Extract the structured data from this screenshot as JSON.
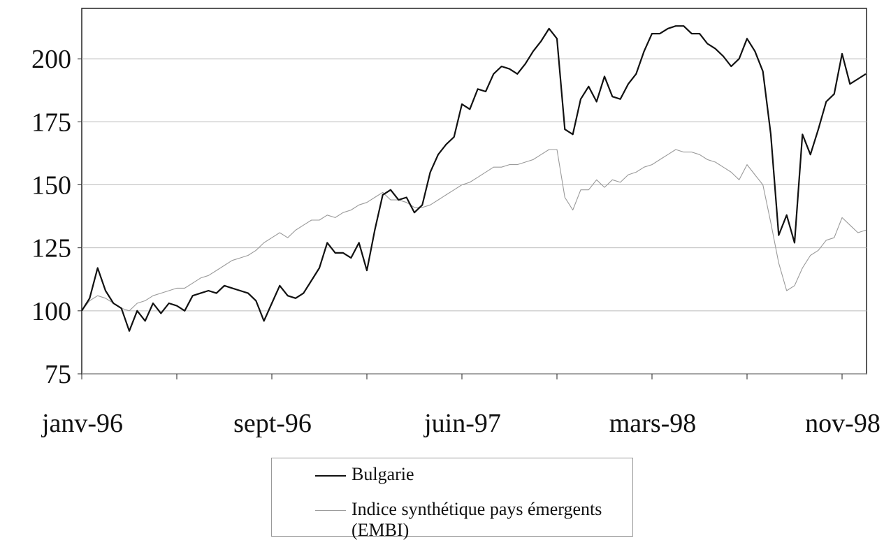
{
  "chart_data": {
    "type": "line",
    "categories": [
      "janv-96",
      null,
      null,
      null,
      null,
      null,
      null,
      null,
      null,
      null,
      null,
      null,
      null,
      null,
      null,
      null,
      null,
      null,
      null,
      null,
      null,
      null,
      null,
      null,
      "sept-96",
      null,
      null,
      null,
      null,
      null,
      null,
      null,
      null,
      null,
      null,
      null,
      null,
      null,
      null,
      null,
      null,
      null,
      null,
      null,
      null,
      null,
      null,
      null,
      "juin-97",
      null,
      null,
      null,
      null,
      null,
      null,
      null,
      null,
      null,
      null,
      null,
      null,
      null,
      null,
      null,
      null,
      null,
      null,
      null,
      null,
      null,
      null,
      null,
      "mars-98",
      null,
      null,
      null,
      null,
      null,
      null,
      null,
      null,
      null,
      null,
      null,
      null,
      null,
      null,
      null,
      null,
      null,
      null,
      null,
      null,
      null,
      null,
      null,
      "nov-98",
      null,
      null,
      null
    ],
    "series": [
      {
        "name": "Bulgarie",
        "color": "#111111",
        "values": [
          100,
          105,
          117,
          108,
          103,
          101,
          92,
          100,
          96,
          103,
          99,
          103,
          102,
          100,
          106,
          107,
          108,
          107,
          110,
          109,
          108,
          107,
          104,
          96,
          103,
          110,
          106,
          105,
          107,
          112,
          117,
          127,
          123,
          123,
          121,
          127,
          116,
          132,
          146,
          148,
          144,
          145,
          139,
          142,
          155,
          162,
          166,
          169,
          182,
          180,
          188,
          187,
          194,
          197,
          196,
          194,
          198,
          203,
          207,
          212,
          208,
          172,
          170,
          184,
          189,
          183,
          193,
          185,
          184,
          190,
          194,
          203,
          210,
          210,
          212,
          213,
          213,
          210,
          210,
          206,
          204,
          201,
          197,
          200,
          208,
          203,
          195,
          170,
          130,
          138,
          127,
          170,
          162,
          172,
          183,
          186,
          202,
          190,
          192,
          194
        ]
      },
      {
        "name": "Indice synthétique pays émergents (EMBI)",
        "color": "#9a9a9a",
        "values": [
          100,
          104,
          106,
          105,
          103,
          101,
          100,
          103,
          104,
          106,
          107,
          108,
          109,
          109,
          111,
          113,
          114,
          116,
          118,
          120,
          121,
          122,
          124,
          127,
          129,
          131,
          129,
          132,
          134,
          136,
          136,
          138,
          137,
          139,
          140,
          142,
          143,
          145,
          147,
          144,
          144,
          143,
          141,
          141,
          142,
          144,
          146,
          148,
          150,
          151,
          153,
          155,
          157,
          157,
          158,
          158,
          159,
          160,
          162,
          164,
          164,
          145,
          140,
          148,
          148,
          152,
          149,
          152,
          151,
          154,
          155,
          157,
          158,
          160,
          162,
          164,
          163,
          163,
          162,
          160,
          159,
          157,
          155,
          152,
          158,
          154,
          150,
          135,
          119,
          108,
          110,
          117,
          122,
          124,
          128,
          129,
          137,
          134,
          131,
          132
        ]
      }
    ],
    "ylim": [
      75,
      220
    ],
    "yticks": [
      75,
      100,
      125,
      150,
      175,
      200
    ],
    "grid": true,
    "legend": "bottom"
  }
}
